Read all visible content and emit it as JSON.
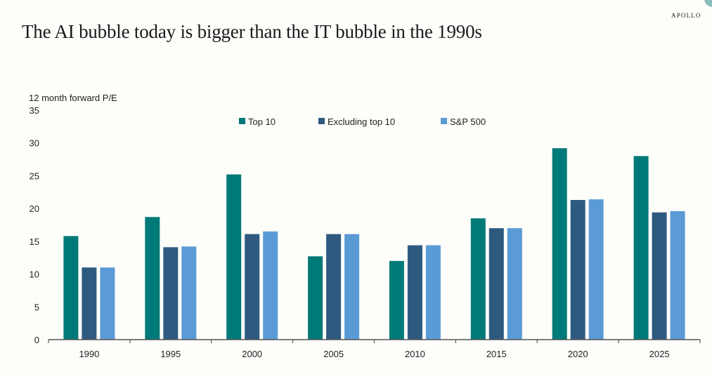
{
  "header": {
    "brand": "APOLLO",
    "title": "The AI bubble today is bigger than the IT bubble in the 1990s"
  },
  "chart_data": {
    "type": "bar",
    "title": "The AI bubble today is bigger than the IT bubble in the 1990s",
    "xlabel": "",
    "ylabel": "12 month forward P/E",
    "ylim": [
      0,
      35
    ],
    "yticks": [
      0,
      5,
      10,
      15,
      20,
      25,
      30,
      35
    ],
    "grid": false,
    "legend_position": "top-center",
    "categories": [
      "1990",
      "1995",
      "2000",
      "2005",
      "2010",
      "2015",
      "2020",
      "2025"
    ],
    "series": [
      {
        "name": "Top 10",
        "color": "#007a78",
        "values": [
          15.8,
          18.7,
          25.2,
          12.7,
          12.0,
          18.5,
          29.2,
          28.0
        ]
      },
      {
        "name": "Excluding top 10",
        "color": "#2f5a80",
        "values": [
          11.0,
          14.1,
          16.1,
          16.1,
          14.4,
          17.0,
          21.3,
          19.4
        ]
      },
      {
        "name": "S&P 500",
        "color": "#5b9bd5",
        "values": [
          11.0,
          14.2,
          16.5,
          16.1,
          14.4,
          17.0,
          21.4,
          19.6
        ]
      }
    ]
  }
}
